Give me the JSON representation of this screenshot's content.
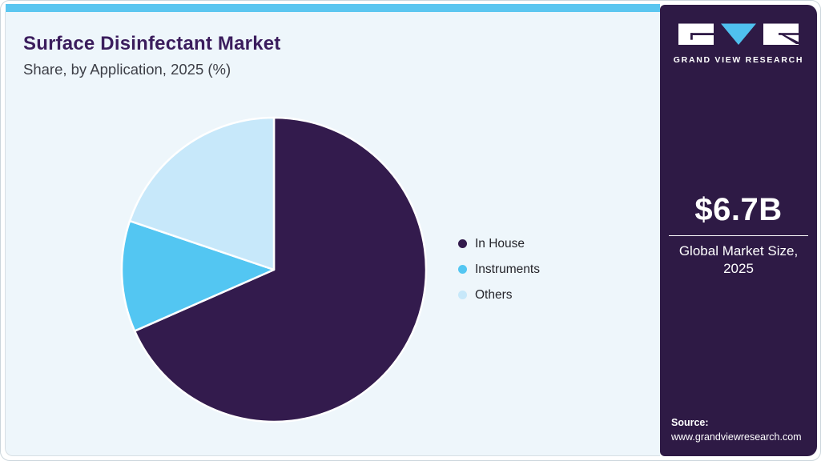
{
  "header": {
    "title": "Surface Disinfectant Market",
    "subtitle": "Share, by Application, 2025 (%)"
  },
  "chart_data": {
    "type": "pie",
    "title": "Surface Disinfectant Market",
    "subtitle": "Share, by Application, 2025 (%)",
    "categories": [
      "In House",
      "Instruments",
      "Others"
    ],
    "values": [
      68.4,
      11.8,
      19.8
    ],
    "unit": "%",
    "colors": [
      "#331b4d",
      "#53c6f2",
      "#c7e8fa"
    ],
    "legend_position": "right",
    "start_angle_deg": 0,
    "direction": "clockwise",
    "slice_separator_color": "#ffffff"
  },
  "sidebar": {
    "brand_name": "GRAND VIEW RESEARCH",
    "logo_icon": "gvr-logo",
    "market_size_value": "$6.7B",
    "market_size_label": "Global Market Size, 2025",
    "source_label": "Source:",
    "source_url": "www.grandviewresearch.com"
  },
  "colors": {
    "accent_bar": "#5bc6f0",
    "panel_bg": "#eef6fb",
    "sidebar_bg": "#2e1a45",
    "title_text": "#3b1d5d",
    "logo_triangle": "#4fc0ee"
  }
}
